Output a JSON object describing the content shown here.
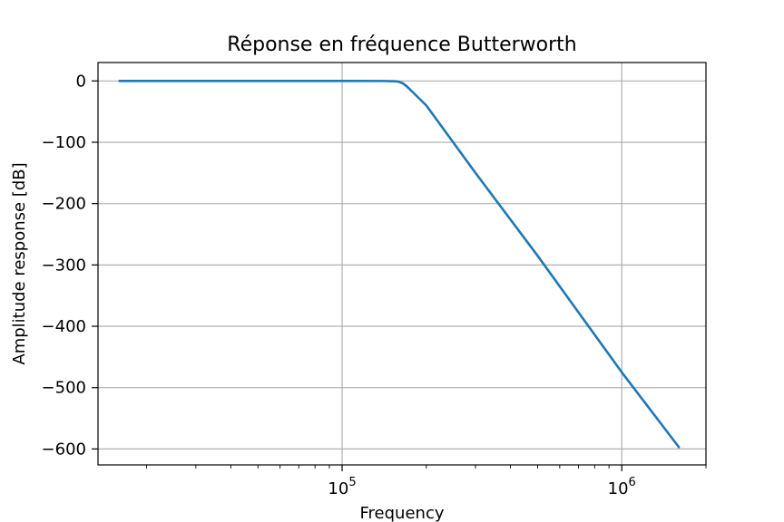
{
  "chart_data": {
    "type": "line",
    "title": "Réponse en fréquence Butterworth",
    "xlabel": "Frequency",
    "ylabel": "Amplitude response [dB]",
    "xscale": "log",
    "xlim": [
      13400,
      2000000
    ],
    "ylim": [
      -626,
      30
    ],
    "grid": true,
    "x_ticks": [
      {
        "value": 100000,
        "base": "10",
        "exp": "5"
      },
      {
        "value": 1000000,
        "base": "10",
        "exp": "6"
      }
    ],
    "y_ticks": [
      {
        "value": 0,
        "label": "0"
      },
      {
        "value": -100,
        "label": "−100"
      },
      {
        "value": -200,
        "label": "−200"
      },
      {
        "value": -300,
        "label": "−300"
      },
      {
        "value": -400,
        "label": "−400"
      },
      {
        "value": -500,
        "label": "−500"
      },
      {
        "value": -600,
        "label": "−600"
      }
    ],
    "series": [
      {
        "color": "#1f77b4",
        "x": [
          16000,
          50000,
          100000,
          140000,
          155000,
          160000,
          165000,
          170000,
          180000,
          200000,
          300000,
          500000,
          1000000,
          1600000
        ],
        "y": [
          0,
          0,
          0,
          -0.1,
          -0.5,
          -1.5,
          -4,
          -8.5,
          -19.5,
          -40,
          -150,
          -285,
          -475,
          -597
        ]
      }
    ]
  }
}
